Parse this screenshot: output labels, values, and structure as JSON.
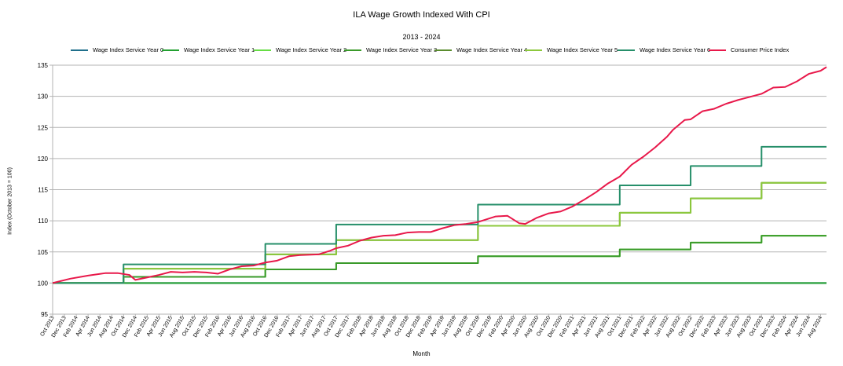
{
  "chart_data": {
    "type": "line",
    "title": "ILA Wage Growth Indexed With CPI",
    "subtitle": "2013 - 2024",
    "xlabel": "Month",
    "ylabel": "Index (October 2013 = 100)",
    "ylim": [
      95,
      135
    ],
    "yticks": [
      95,
      100,
      105,
      110,
      115,
      120,
      125,
      130,
      135
    ],
    "grid": true,
    "legend_position": "top",
    "x_start": "Oct 2013",
    "x_end": "Sep 2024",
    "x_tick_labels": [
      "Oct 2013",
      "Dec 2013",
      "Feb 2014",
      "Apr 2014",
      "Jun 2014",
      "Aug 2014",
      "Oct 2014",
      "Dec 2014",
      "Feb 2015",
      "Apr 2015",
      "Jun 2015",
      "Aug 2015",
      "Oct 2015",
      "Dec 2015",
      "Feb 2016",
      "Apr 2016",
      "Jun 2016",
      "Aug 2016",
      "Oct 2016",
      "Dec 2016",
      "Feb 2017",
      "Apr 2017",
      "Jun 2017",
      "Aug 2017",
      "Oct 2017",
      "Dec 2017",
      "Feb 2018",
      "Apr 2018",
      "Jun 2018",
      "Aug 2018",
      "Oct 2018",
      "Dec 2018",
      "Feb 2019",
      "Apr 2019",
      "Jun 2019",
      "Aug 2019",
      "Oct 2019",
      "Dec 2019",
      "Feb 2020",
      "Apr 2020",
      "Jun 2020",
      "Aug 2020",
      "Oct 2020",
      "Dec 2020",
      "Feb 2021",
      "Apr 2021",
      "Jun 2021",
      "Aug 2021",
      "Oct 2021",
      "Dec 2021",
      "Feb 2022",
      "Apr 2022",
      "Jun 2022",
      "Aug 2022",
      "Oct 2022",
      "Dec 2022",
      "Feb 2023",
      "Apr 2023",
      "Jun 2023",
      "Aug 2023",
      "Oct 2023",
      "Dec 2023",
      "Feb 2024",
      "Apr 2024",
      "Jun 2024",
      "Aug 2024"
    ],
    "series": [
      {
        "name": "Wage Index Service Year 0",
        "color": "#1f6f8b",
        "step": true,
        "points": [
          [
            "Oct 2013",
            100
          ],
          [
            "Sep 2024",
            100
          ]
        ]
      },
      {
        "name": "Wage Index Service Year 1",
        "color": "#22a030",
        "step": true,
        "points": [
          [
            "Oct 2013",
            100
          ],
          [
            "Sep 2024",
            100
          ]
        ]
      },
      {
        "name": "Wage Index Service Year 2",
        "color": "#66dd44",
        "step": true,
        "points": [
          [
            "Oct 2013",
            100
          ],
          [
            "Oct 2014",
            101
          ],
          [
            "Oct 2016",
            102.2
          ],
          [
            "Oct 2017",
            103.2
          ],
          [
            "Oct 2019",
            104.3
          ],
          [
            "Oct 2021",
            105.4
          ],
          [
            "Oct 2022",
            106.5
          ],
          [
            "Oct 2023",
            107.6
          ],
          [
            "Sep 2024",
            107.6
          ]
        ]
      },
      {
        "name": "Wage Index Service Year 3",
        "color": "#3a9a2a",
        "step": true,
        "points": [
          [
            "Oct 2013",
            100
          ],
          [
            "Oct 2014",
            101
          ],
          [
            "Oct 2016",
            102.2
          ],
          [
            "Oct 2017",
            103.2
          ],
          [
            "Oct 2019",
            104.3
          ],
          [
            "Oct 2021",
            105.4
          ],
          [
            "Oct 2022",
            106.5
          ],
          [
            "Oct 2023",
            107.6
          ],
          [
            "Sep 2024",
            107.6
          ]
        ]
      },
      {
        "name": "Wage Index Service Year 4",
        "color": "#5a8c2e",
        "step": true,
        "points": [
          [
            "Oct 2013",
            100
          ],
          [
            "Oct 2014",
            102.3
          ],
          [
            "Oct 2016",
            104.6
          ],
          [
            "Oct 2017",
            106.9
          ],
          [
            "Oct 2019",
            109.2
          ],
          [
            "Oct 2021",
            111.3
          ],
          [
            "Oct 2022",
            113.6
          ],
          [
            "Oct 2023",
            116.1
          ],
          [
            "Sep 2024",
            116.1
          ]
        ]
      },
      {
        "name": "Wage Index Service Year 5",
        "color": "#8cc83c",
        "step": true,
        "points": [
          [
            "Oct 2013",
            100
          ],
          [
            "Oct 2014",
            102.3
          ],
          [
            "Oct 2016",
            104.6
          ],
          [
            "Oct 2017",
            106.9
          ],
          [
            "Oct 2019",
            109.2
          ],
          [
            "Oct 2021",
            111.3
          ],
          [
            "Oct 2022",
            113.6
          ],
          [
            "Oct 2023",
            116.1
          ],
          [
            "Sep 2024",
            116.1
          ]
        ]
      },
      {
        "name": "Wage Index Service Year 6",
        "color": "#268f6a",
        "step": true,
        "points": [
          [
            "Oct 2013",
            100
          ],
          [
            "Oct 2014",
            103
          ],
          [
            "Oct 2016",
            106.3
          ],
          [
            "Oct 2017",
            109.4
          ],
          [
            "Oct 2019",
            112.6
          ],
          [
            "Oct 2021",
            115.7
          ],
          [
            "Oct 2022",
            118.8
          ],
          [
            "Oct 2023",
            121.9
          ],
          [
            "Sep 2024",
            121.9
          ]
        ]
      },
      {
        "name": "Consumer Price Index",
        "color": "#e8184a",
        "step": false,
        "points": [
          [
            "Oct 2013",
            100
          ],
          [
            "Jan 2014",
            100.7
          ],
          [
            "Apr 2014",
            101.2
          ],
          [
            "Jul 2014",
            101.6
          ],
          [
            "Sep 2014",
            101.6
          ],
          [
            "Nov 2014",
            101.3
          ],
          [
            "Dec 2014",
            100.5
          ],
          [
            "Feb 2015",
            100.9
          ],
          [
            "Apr 2015",
            101.3
          ],
          [
            "Jun 2015",
            101.8
          ],
          [
            "Aug 2015",
            101.7
          ],
          [
            "Oct 2015",
            101.8
          ],
          [
            "Dec 2015",
            101.7
          ],
          [
            "Feb 2016",
            101.5
          ],
          [
            "Apr 2016",
            102.2
          ],
          [
            "Jun 2016",
            102.7
          ],
          [
            "Aug 2016",
            102.8
          ],
          [
            "Oct 2016",
            103.3
          ],
          [
            "Dec 2016",
            103.6
          ],
          [
            "Feb 2017",
            104.3
          ],
          [
            "Apr 2017",
            104.5
          ],
          [
            "Jul 2017",
            104.6
          ],
          [
            "Sep 2017",
            105.2
          ],
          [
            "Oct 2017",
            105.6
          ],
          [
            "Dec 2017",
            106
          ],
          [
            "Feb 2018",
            106.8
          ],
          [
            "Apr 2018",
            107.3
          ],
          [
            "Jun 2018",
            107.6
          ],
          [
            "Aug 2018",
            107.7
          ],
          [
            "Oct 2018",
            108.1
          ],
          [
            "Dec 2018",
            108.2
          ],
          [
            "Feb 2019",
            108.2
          ],
          [
            "Apr 2019",
            108.8
          ],
          [
            "Jun 2019",
            109.3
          ],
          [
            "Aug 2019",
            109.5
          ],
          [
            "Oct 2019",
            109.8
          ],
          [
            "Dec 2019",
            110.4
          ],
          [
            "Jan 2020",
            110.7
          ],
          [
            "Mar 2020",
            110.8
          ],
          [
            "Apr 2020",
            110.2
          ],
          [
            "May 2020",
            109.6
          ],
          [
            "Jun 2020",
            109.5
          ],
          [
            "Aug 2020",
            110.5
          ],
          [
            "Oct 2020",
            111.2
          ],
          [
            "Dec 2020",
            111.5
          ],
          [
            "Feb 2021",
            112.3
          ],
          [
            "Apr 2021",
            113.4
          ],
          [
            "Jun 2021",
            114.6
          ],
          [
            "Aug 2021",
            116
          ],
          [
            "Oct 2021",
            117.1
          ],
          [
            "Dec 2021",
            119
          ],
          [
            "Feb 2022",
            120.3
          ],
          [
            "Apr 2022",
            121.8
          ],
          [
            "Jun 2022",
            123.5
          ],
          [
            "Jul 2022",
            124.6
          ],
          [
            "Sep 2022",
            126.2
          ],
          [
            "Oct 2022",
            126.3
          ],
          [
            "Dec 2022",
            127.6
          ],
          [
            "Feb 2023",
            128
          ],
          [
            "Apr 2023",
            128.8
          ],
          [
            "Jun 2023",
            129.4
          ],
          [
            "Aug 2023",
            129.9
          ],
          [
            "Oct 2023",
            130.4
          ],
          [
            "Dec 2023",
            131.4
          ],
          [
            "Feb 2024",
            131.5
          ],
          [
            "Apr 2024",
            132.4
          ],
          [
            "Jun 2024",
            133.6
          ],
          [
            "Aug 2024",
            134.1
          ],
          [
            "Sep 2024",
            134.7
          ]
        ]
      }
    ]
  }
}
